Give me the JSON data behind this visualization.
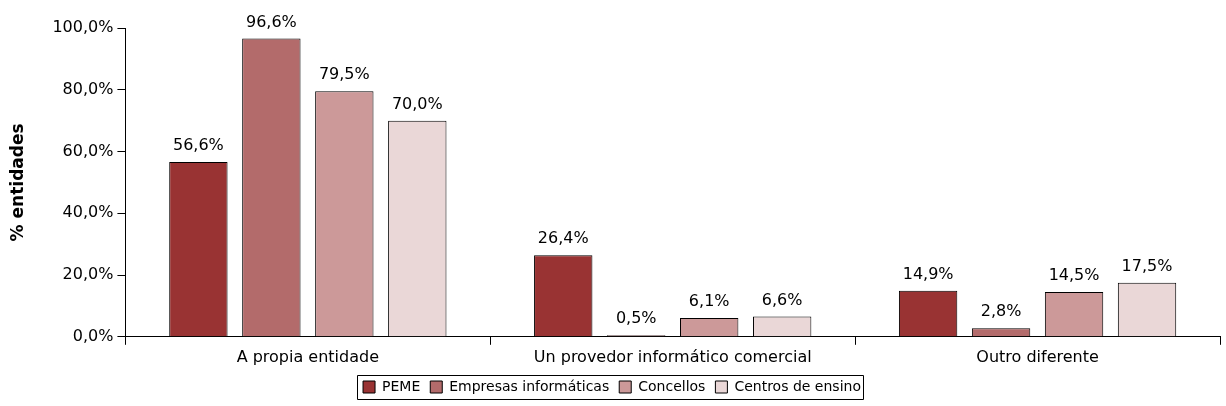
{
  "chart_data": {
    "type": "bar",
    "ylabel": "% entidades",
    "categories": [
      "A propia entidade",
      "Un provedor informático comercial",
      "Outro diferente"
    ],
    "series": [
      {
        "name": "PEME",
        "color": "#993333",
        "values": [
          56.6,
          26.4,
          14.9
        ],
        "value_labels": [
          "56,6%",
          "26,4%",
          "14,9%"
        ]
      },
      {
        "name": "Empresas informáticas",
        "color": "#b36b6b",
        "values": [
          96.6,
          0.5,
          2.8
        ],
        "value_labels": [
          "96,6%",
          "0,5%",
          "2,8%"
        ]
      },
      {
        "name": "Concellos",
        "color": "#cc9999",
        "values": [
          79.5,
          6.1,
          14.5
        ],
        "value_labels": [
          "79,5%",
          "6,1%",
          "14,5%"
        ]
      },
      {
        "name": "Centros de ensino",
        "color": "#ead7d7",
        "values": [
          70.0,
          6.6,
          17.5
        ],
        "value_labels": [
          "70,0%",
          "6,6%",
          "17,5%"
        ]
      }
    ],
    "ylim": [
      0,
      100
    ],
    "yticks": [
      {
        "value": 0,
        "label": "0,0%"
      },
      {
        "value": 20,
        "label": "20,0%"
      },
      {
        "value": 40,
        "label": "40,0%"
      },
      {
        "value": 60,
        "label": "60,0%"
      },
      {
        "value": 80,
        "label": "80,0%"
      },
      {
        "value": 100,
        "label": "100,0%"
      }
    ],
    "grid": false,
    "legend": "bottom"
  }
}
